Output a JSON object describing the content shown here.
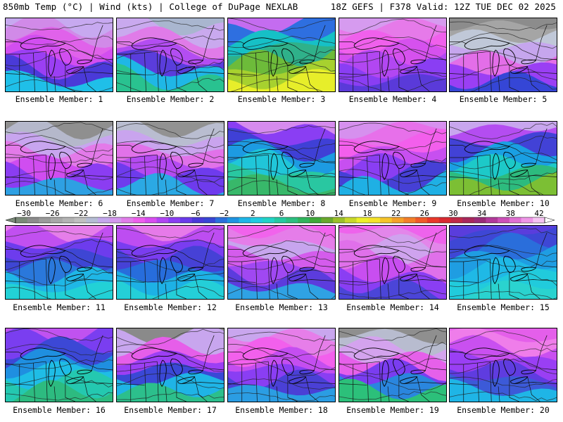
{
  "header": {
    "left": "850mb Temp (°C) | Wind (kts) | College of DuPage NEXLAB",
    "right": "18Z GEFS | F378 Valid: 12Z TUE DEC 02 2025"
  },
  "caption_prefix": "Ensemble Member: ",
  "members": [
    {
      "id": "1",
      "temp_scheme": [
        "#c7a9f0",
        "#d18ae8",
        "#e062ea",
        "#d24ef0",
        "#9b3ff4",
        "#4a3ad8",
        "#1fbfe8"
      ]
    },
    {
      "id": "2",
      "temp_scheme": [
        "#a9b6cf",
        "#c9a9ee",
        "#e07be8",
        "#b34df2",
        "#5a3ddc",
        "#1fb7e6",
        "#29c290"
      ]
    },
    {
      "id": "3",
      "temp_scheme": [
        "#c46cf0",
        "#2e6fe0",
        "#16c0c6",
        "#2fb18a",
        "#6dbb3a",
        "#a7d12f",
        "#e7ee2a"
      ]
    },
    {
      "id": "4",
      "temp_scheme": [
        "#d69bef",
        "#e67ae9",
        "#f060ec",
        "#d651ee",
        "#b247f2",
        "#8a3ef3",
        "#5a3ad9"
      ]
    },
    {
      "id": "5",
      "temp_scheme": [
        "#8c8c8c",
        "#a5a5a5",
        "#c0c8d8",
        "#c6a6ee",
        "#e36ee8",
        "#9a3ff4",
        "#3546d6"
      ]
    },
    {
      "id": "6",
      "temp_scheme": [
        "#8f8f8f",
        "#b5b8cb",
        "#c8a5ef",
        "#e37ae9",
        "#d04df0",
        "#8b3df2",
        "#2ea0e3"
      ]
    },
    {
      "id": "7",
      "temp_scheme": [
        "#929292",
        "#b9bdd0",
        "#c9a4ee",
        "#e172e9",
        "#b44bf1",
        "#6e3bed",
        "#2ba9e4"
      ]
    },
    {
      "id": "8",
      "temp_scheme": [
        "#d68bee",
        "#8a3ef3",
        "#3f40d6",
        "#1d9be2",
        "#20c6d9",
        "#29c7a1",
        "#38b86a"
      ]
    },
    {
      "id": "9",
      "temp_scheme": [
        "#d690ee",
        "#e770ea",
        "#f35fec",
        "#c74ff0",
        "#8a3ef3",
        "#4640d6",
        "#1fb0e4"
      ]
    },
    {
      "id": "10",
      "temp_scheme": [
        "#c8a6ee",
        "#b44df1",
        "#4242d6",
        "#1a9fe3",
        "#1dc9c8",
        "#2dbb7e",
        "#7cbf34"
      ]
    },
    {
      "id": "11",
      "temp_scheme": [
        "#e57ee9",
        "#c150f0",
        "#6d3ced",
        "#3e46d4",
        "#2a78db",
        "#1fb7e6",
        "#22d1d6"
      ]
    },
    {
      "id": "12",
      "temp_scheme": [
        "#e67ae9",
        "#bd4df1",
        "#7a3df0",
        "#4641d6",
        "#276ddc",
        "#1db1e5",
        "#24cfd8"
      ]
    },
    {
      "id": "13",
      "temp_scheme": [
        "#f163ec",
        "#e57de9",
        "#c7a5ee",
        "#d45cec",
        "#a048f2",
        "#5c3cdd",
        "#2fa2e4"
      ]
    },
    {
      "id": "14",
      "temp_scheme": [
        "#ee63ec",
        "#e386ea",
        "#cfa3ee",
        "#e070ea",
        "#c84ef0",
        "#8a3ef3",
        "#4b45d8"
      ]
    },
    {
      "id": "15",
      "temp_scheme": [
        "#5a3ddc",
        "#3e47d5",
        "#2a6edb",
        "#1f9de2",
        "#1fb9e6",
        "#21cbdc",
        "#2ad3cf"
      ]
    },
    {
      "id": "16",
      "temp_scheme": [
        "#c052f0",
        "#7a3ef0",
        "#3c48d6",
        "#1f8fe0",
        "#1fbde6",
        "#24c8b0",
        "#2dbb80"
      ]
    },
    {
      "id": "17",
      "temp_scheme": [
        "#8a8a8a",
        "#c8a6ee",
        "#e65ee9",
        "#9c3ff4",
        "#3a48d6",
        "#1fb4e6",
        "#2cbf8c"
      ]
    },
    {
      "id": "18",
      "temp_scheme": [
        "#c9a6ee",
        "#e67ee9",
        "#f260ec",
        "#c44ef0",
        "#8a3ef3",
        "#4a40d6",
        "#2b9de3"
      ]
    },
    {
      "id": "19",
      "temp_scheme": [
        "#8f8f8f",
        "#b8bccf",
        "#d4a3ee",
        "#e660ea",
        "#7a3df0",
        "#2a86de",
        "#2cc07a"
      ]
    },
    {
      "id": "20",
      "temp_scheme": [
        "#e45fea",
        "#ef7dea",
        "#c950f0",
        "#9a3ff4",
        "#5f3ce0",
        "#3c5ad8",
        "#1fb5e6"
      ]
    }
  ],
  "colorbar": {
    "labels": [
      "−30",
      "−26",
      "−22",
      "−18",
      "−14",
      "−10",
      "−6",
      "−2",
      "2",
      "6",
      "10",
      "14",
      "18",
      "22",
      "26",
      "30",
      "34",
      "38",
      "42"
    ],
    "colors": [
      "#7a8a78",
      "#8c8c8c",
      "#9b9b9b",
      "#a8a8a8",
      "#b4b4b4",
      "#c0c0c0",
      "#b5bdd4",
      "#c4a8ec",
      "#d498ee",
      "#e07de9",
      "#ee5fec",
      "#d84ef0",
      "#b046f2",
      "#8a3ef3",
      "#6a3bea",
      "#4a3ad8",
      "#3846d4",
      "#2a70db",
      "#1f94e1",
      "#1fb6e7",
      "#20cbe0",
      "#22d3c6",
      "#25c9a0",
      "#2cbf80",
      "#30b45c",
      "#3fa83a",
      "#6aa82d",
      "#9bc02a",
      "#c8d82a",
      "#ecef2a",
      "#f5e22a",
      "#f5c42a",
      "#f4a12a",
      "#f27f2a",
      "#ef5a2a",
      "#e8382a",
      "#d82a32",
      "#c02a48",
      "#a8285c",
      "#9a2c78",
      "#b23a9a",
      "#cc50b8",
      "#e070d2",
      "#ee96e6",
      "#f6c4f2"
    ]
  }
}
